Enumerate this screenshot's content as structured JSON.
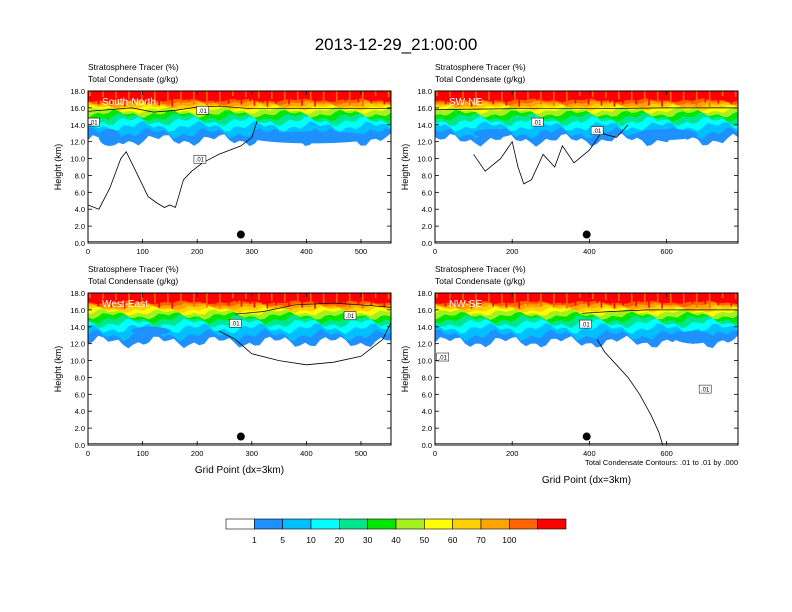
{
  "figure": {
    "title": "2013-12-29_21:00:00",
    "footnote": "Total Condensate Contours: .01 to .01 by .000"
  },
  "colorbar": {
    "labels": [
      "1",
      "5",
      "10",
      "20",
      "30",
      "40",
      "50",
      "60",
      "70",
      "100"
    ],
    "colors": [
      "#ffffff",
      "#1e90ff",
      "#00bfff",
      "#00ffff",
      "#00e68c",
      "#00e600",
      "#a6f020",
      "#ffff00",
      "#ffd000",
      "#ffa500",
      "#ff6400",
      "#ff0000"
    ]
  },
  "chart_data": [
    {
      "type": "heatmap",
      "panel_label": "South-North",
      "title_line1": "Stratosphere Tracer   (%)",
      "title_line2": "Total Condensate   (g/kg)",
      "ylabel": "Height (km)",
      "xlabel": "",
      "xlim": [
        0,
        555
      ],
      "ylim": [
        0,
        18
      ],
      "xticks": [
        0,
        100,
        200,
        300,
        400,
        500
      ],
      "yticks": [
        0.0,
        2.0,
        4.0,
        6.0,
        8.0,
        10.0,
        12.0,
        14.0,
        16.0,
        18.0
      ],
      "marker_x": 280,
      "marker_y": 1.0,
      "contour_labels": [
        ".01",
        ".01",
        ".01"
      ],
      "contour_label_pos": [
        [
          10,
          14.2
        ],
        [
          210,
          15.6
        ],
        [
          205,
          9.8
        ]
      ],
      "contour": [
        [
          0,
          4.5
        ],
        [
          20,
          4.0
        ],
        [
          40,
          6.5
        ],
        [
          60,
          10.0
        ],
        [
          70,
          10.8
        ],
        [
          80,
          9.5
        ],
        [
          95,
          7.5
        ],
        [
          110,
          5.5
        ],
        [
          125,
          4.8
        ],
        [
          140,
          4.2
        ],
        [
          150,
          4.5
        ],
        [
          160,
          4.2
        ],
        [
          175,
          7.5
        ],
        [
          190,
          8.5
        ],
        [
          210,
          9.5
        ],
        [
          240,
          10.5
        ],
        [
          280,
          11.5
        ],
        [
          300,
          12.5
        ],
        [
          310,
          14.5
        ]
      ],
      "tropopause": [
        [
          0,
          15.6
        ],
        [
          40,
          15.8
        ],
        [
          80,
          16.0
        ],
        [
          120,
          15.5
        ],
        [
          160,
          15.7
        ],
        [
          200,
          16.1
        ],
        [
          240,
          16.2
        ],
        [
          300,
          15.9
        ],
        [
          400,
          15.9
        ],
        [
          555,
          15.9
        ]
      ],
      "cloud_patches": [
        [
          20,
          11.5,
          60,
          13.5
        ],
        [
          300,
          11.8,
          520,
          13.2
        ],
        [
          360,
          12.0,
          440,
          12.8
        ]
      ]
    },
    {
      "type": "heatmap",
      "panel_label": "SW-NE",
      "title_line1": "Stratosphere Tracer   (%)",
      "title_line2": "Total Condensate   (g/kg)",
      "ylabel": "Height (km)",
      "xlabel": "",
      "xlim": [
        0,
        785
      ],
      "ylim": [
        0,
        18
      ],
      "xticks": [
        0,
        200,
        400,
        600
      ],
      "yticks": [
        0.0,
        2.0,
        4.0,
        6.0,
        8.0,
        10.0,
        12.0,
        14.0,
        16.0,
        18.0
      ],
      "marker_x": 393,
      "marker_y": 1.0,
      "contour_labels": [
        ".01",
        ".01"
      ],
      "contour_label_pos": [
        [
          265,
          14.2
        ],
        [
          420,
          13.2
        ]
      ],
      "contour": [
        [
          100,
          10.5
        ],
        [
          130,
          8.5
        ],
        [
          170,
          10.0
        ],
        [
          200,
          12.0
        ],
        [
          215,
          9.0
        ],
        [
          230,
          7.0
        ],
        [
          250,
          7.5
        ],
        [
          280,
          10.5
        ],
        [
          310,
          9.0
        ],
        [
          330,
          11.5
        ],
        [
          360,
          9.5
        ],
        [
          400,
          11.0
        ],
        [
          430,
          13.0
        ],
        [
          470,
          12.5
        ],
        [
          500,
          14.0
        ]
      ],
      "tropopause": [
        [
          0,
          15.8
        ],
        [
          200,
          15.9
        ],
        [
          400,
          15.9
        ],
        [
          600,
          16.0
        ],
        [
          785,
          16.0
        ]
      ],
      "cloud_patches": [
        [
          520,
          12.2,
          680,
          13.5
        ],
        [
          100,
          12.5,
          200,
          13.5
        ]
      ]
    },
    {
      "type": "heatmap",
      "panel_label": "West-East",
      "title_line1": "Stratosphere Tracer   (%)",
      "title_line2": "Total Condensate   (g/kg)",
      "ylabel": "Height (km)",
      "xlabel": "Grid Point (dx=3km)",
      "xlim": [
        0,
        555
      ],
      "ylim": [
        0,
        18
      ],
      "xticks": [
        0,
        100,
        200,
        300,
        400,
        500
      ],
      "yticks": [
        0.0,
        2.0,
        4.0,
        6.0,
        8.0,
        10.0,
        12.0,
        14.0,
        16.0,
        18.0
      ],
      "marker_x": 280,
      "marker_y": 1.0,
      "contour_labels": [
        ".01",
        ".01"
      ],
      "contour_label_pos": [
        [
          270,
          14.3
        ],
        [
          480,
          15.2
        ]
      ],
      "contour": [
        [
          240,
          13.5
        ],
        [
          270,
          12.5
        ],
        [
          300,
          10.8
        ],
        [
          350,
          10.0
        ],
        [
          400,
          9.5
        ],
        [
          450,
          9.8
        ],
        [
          500,
          10.5
        ],
        [
          540,
          12.5
        ],
        [
          555,
          14.5
        ]
      ],
      "tropopause": [
        [
          270,
          15.5
        ],
        [
          320,
          15.8
        ],
        [
          380,
          16.6
        ],
        [
          450,
          16.8
        ],
        [
          520,
          16.5
        ],
        [
          555,
          16.3
        ]
      ],
      "cloud_patches": [
        [
          80,
          13.0,
          150,
          14.0
        ]
      ]
    },
    {
      "type": "heatmap",
      "panel_label": "NW-SE",
      "title_line1": "Stratosphere Tracer   (%)",
      "title_line2": "Total Condensate   (g/kg)",
      "ylabel": "Height (km)",
      "xlabel": "Grid Point (dx=3km)",
      "xlim": [
        0,
        785
      ],
      "ylim": [
        0,
        18
      ],
      "xticks": [
        0,
        200,
        400,
        600
      ],
      "yticks": [
        0.0,
        2.0,
        4.0,
        6.0,
        8.0,
        10.0,
        12.0,
        14.0,
        16.0,
        18.0
      ],
      "marker_x": 393,
      "marker_y": 1.0,
      "contour_labels": [
        ".01",
        ".01",
        ".01"
      ],
      "contour_label_pos": [
        [
          20,
          10.3
        ],
        [
          390,
          14.2
        ],
        [
          700,
          6.5
        ]
      ],
      "contour": [
        [
          420,
          12.5
        ],
        [
          440,
          11.0
        ],
        [
          470,
          9.5
        ],
        [
          500,
          8.0
        ],
        [
          530,
          6.0
        ],
        [
          560,
          3.5
        ],
        [
          580,
          1.5
        ],
        [
          590,
          0.0
        ]
      ],
      "tropopause": [
        [
          380,
          15.6
        ],
        [
          450,
          15.8
        ],
        [
          550,
          16.0
        ],
        [
          650,
          16.0
        ],
        [
          785,
          16.0
        ]
      ],
      "cloud_patches": [
        [
          620,
          12.0,
          720,
          13.5
        ]
      ]
    }
  ]
}
